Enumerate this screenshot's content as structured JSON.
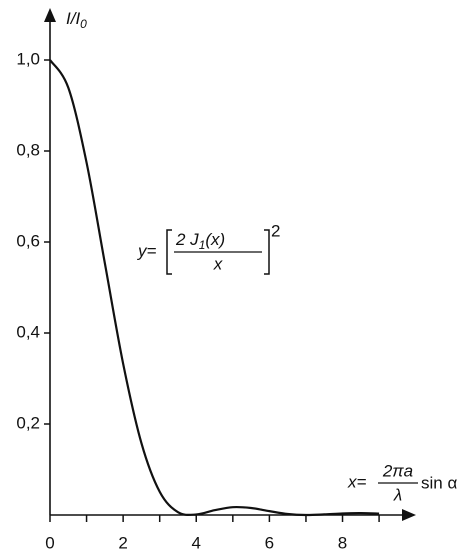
{
  "chart_data": {
    "type": "line",
    "ylabel": {
      "main": "I/I",
      "sub": "0"
    },
    "formula": {
      "lhs": "y=",
      "num": "2 J",
      "num_sub": "1",
      "num_arg": "(x)",
      "den": "x",
      "power": "2"
    },
    "xlabel": {
      "lhs": "x=",
      "num": "2πa",
      "den": "λ",
      "tail": "sin α"
    },
    "x": [
      0,
      0.5,
      1,
      1.5,
      2,
      2.5,
      3,
      3.5,
      4,
      4.5,
      5,
      5.5,
      6,
      6.5,
      7,
      7.5,
      8,
      8.5,
      9
    ],
    "series": [
      {
        "color": "#111111",
        "values": [
          1,
          0.9392,
          0.7746,
          0.5534,
          0.3326,
          0.1581,
          0.0511,
          0.0062,
          0.0011,
          0.0105,
          0.0172,
          0.0154,
          0.0085,
          0.0022,
          0,
          0.0013,
          0.0034,
          0.0041,
          0.003
        ]
      }
    ],
    "xlim": [
      0,
      9.9
    ],
    "ylim": [
      0,
      1.1
    ],
    "xticks": [
      0,
      2,
      4,
      6,
      8
    ],
    "xminor_ticks": [
      1,
      3,
      5,
      7,
      9
    ],
    "yticks": [
      {
        "value": 0.2,
        "label": "0,2"
      },
      {
        "value": 0.4,
        "label": "0,4"
      },
      {
        "value": 0.6,
        "label": "0,6"
      },
      {
        "value": 0.8,
        "label": "0,8"
      },
      {
        "value": 1,
        "label": "1,0"
      }
    ]
  }
}
